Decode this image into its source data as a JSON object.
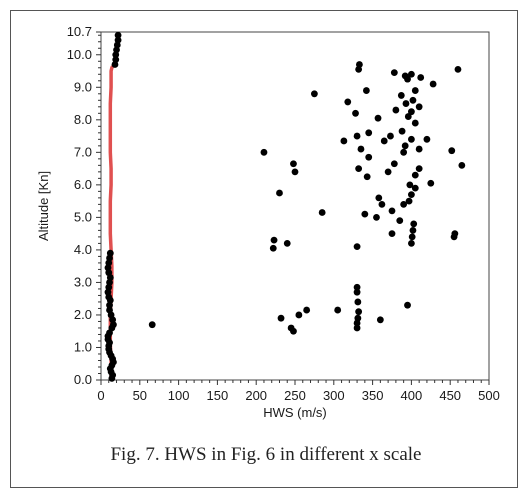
{
  "caption": "Fig. 7.  HWS in Fig. 6 in different x scale",
  "chart_data": {
    "type": "scatter",
    "xlabel": "HWS (m/s)",
    "ylabel": "Altitude [Kn]",
    "xlim": [
      0,
      500
    ],
    "ylim": [
      0,
      10.7
    ],
    "x_ticks": [
      "0",
      "50",
      "100",
      "150",
      "200",
      "250",
      "300",
      "350",
      "400",
      "450",
      "500"
    ],
    "y_ticks": [
      "0.0",
      "1.0",
      "2.0",
      "3.0",
      "4.0",
      "5.0",
      "6.0",
      "7.0",
      "8.0",
      "9.0",
      "10.0",
      "10.7"
    ],
    "y_tick_values": [
      0,
      1,
      2,
      3,
      4,
      5,
      6,
      7,
      8,
      9,
      10,
      10.7
    ],
    "grid": false,
    "colors": {
      "points": "#000000",
      "profile_line": "#e05050"
    },
    "profile_line": {
      "x": [
        13,
        13,
        12,
        12,
        12,
        13,
        14,
        14,
        13,
        12,
        12,
        12,
        13,
        13,
        12,
        12,
        12,
        12,
        13,
        13,
        13,
        14,
        15
      ],
      "y": [
        0.1,
        0.6,
        1.1,
        1.5,
        2.0,
        2.5,
        3.0,
        3.5,
        4.0,
        4.5,
        5.0,
        5.5,
        6.0,
        6.5,
        7.0,
        7.5,
        8.0,
        8.5,
        9.0,
        9.3,
        9.5,
        9.6,
        9.65
      ]
    },
    "series": [
      {
        "values": [
          [
            14,
            0.05
          ],
          [
            15,
            0.15
          ],
          [
            13,
            0.25
          ],
          [
            12,
            0.35
          ],
          [
            14,
            0.45
          ],
          [
            16,
            0.55
          ],
          [
            15,
            0.65
          ],
          [
            13,
            0.75
          ],
          [
            11,
            0.85
          ],
          [
            10,
            0.95
          ],
          [
            10,
            1.05
          ],
          [
            11,
            1.15
          ],
          [
            9,
            1.25
          ],
          [
            9,
            1.35
          ],
          [
            11,
            1.45
          ],
          [
            14,
            1.6
          ],
          [
            16,
            1.7
          ],
          [
            15,
            1.85
          ],
          [
            13,
            2.0
          ],
          [
            11,
            2.15
          ],
          [
            11,
            2.3
          ],
          [
            12,
            2.45
          ],
          [
            10,
            2.55
          ],
          [
            9,
            2.7
          ],
          [
            10,
            2.85
          ],
          [
            11,
            3.0
          ],
          [
            12,
            3.15
          ],
          [
            10,
            3.3
          ],
          [
            9,
            3.45
          ],
          [
            10,
            3.6
          ],
          [
            11,
            3.75
          ],
          [
            12,
            3.9
          ],
          [
            18,
            9.7
          ],
          [
            19,
            9.85
          ],
          [
            19,
            10.0
          ],
          [
            20,
            10.15
          ],
          [
            21,
            10.3
          ],
          [
            22,
            10.45
          ],
          [
            22,
            10.6
          ],
          [
            66,
            1.7
          ],
          [
            232,
            1.9
          ],
          [
            245,
            1.6
          ],
          [
            248,
            1.5
          ],
          [
            255,
            2.0
          ],
          [
            265,
            2.15
          ],
          [
            305,
            2.15
          ],
          [
            360,
            1.85
          ],
          [
            395,
            2.3
          ],
          [
            330,
            1.6
          ],
          [
            330,
            1.75
          ],
          [
            331,
            1.9
          ],
          [
            332,
            2.1
          ],
          [
            331,
            2.4
          ],
          [
            330,
            2.7
          ],
          [
            330,
            2.85
          ],
          [
            222,
            4.05
          ],
          [
            223,
            4.3
          ],
          [
            240,
            4.2
          ],
          [
            330,
            4.1
          ],
          [
            375,
            4.5
          ],
          [
            385,
            4.9
          ],
          [
            400,
            4.2
          ],
          [
            401,
            4.4
          ],
          [
            402,
            4.6
          ],
          [
            403,
            4.8
          ],
          [
            455,
            4.4
          ],
          [
            456,
            4.5
          ],
          [
            285,
            5.15
          ],
          [
            340,
            5.1
          ],
          [
            355,
            5.0
          ],
          [
            358,
            5.6
          ],
          [
            362,
            5.4
          ],
          [
            375,
            5.2
          ],
          [
            390,
            5.4
          ],
          [
            397,
            5.5
          ],
          [
            400,
            5.7
          ],
          [
            405,
            5.9
          ],
          [
            230,
            5.75
          ],
          [
            250,
            6.4
          ],
          [
            248,
            6.65
          ],
          [
            210,
            7.0
          ],
          [
            332,
            6.5
          ],
          [
            343,
            6.25
          ],
          [
            345,
            6.85
          ],
          [
            370,
            6.4
          ],
          [
            378,
            6.65
          ],
          [
            390,
            7.0
          ],
          [
            398,
            6.0
          ],
          [
            405,
            6.3
          ],
          [
            410,
            6.5
          ],
          [
            425,
            6.05
          ],
          [
            452,
            7.05
          ],
          [
            465,
            6.6
          ],
          [
            313,
            7.35
          ],
          [
            330,
            7.5
          ],
          [
            335,
            7.1
          ],
          [
            345,
            7.6
          ],
          [
            365,
            7.35
          ],
          [
            373,
            7.5
          ],
          [
            388,
            7.65
          ],
          [
            392,
            7.2
          ],
          [
            400,
            7.4
          ],
          [
            405,
            7.9
          ],
          [
            410,
            7.1
          ],
          [
            420,
            7.4
          ],
          [
            275,
            8.8
          ],
          [
            318,
            8.55
          ],
          [
            328,
            8.2
          ],
          [
            342,
            8.9
          ],
          [
            357,
            8.05
          ],
          [
            380,
            8.3
          ],
          [
            387,
            8.75
          ],
          [
            393,
            8.5
          ],
          [
            396,
            8.1
          ],
          [
            400,
            8.25
          ],
          [
            402,
            8.6
          ],
          [
            405,
            8.9
          ],
          [
            410,
            8.4
          ],
          [
            332,
            9.55
          ],
          [
            333,
            9.7
          ],
          [
            378,
            9.45
          ],
          [
            392,
            9.35
          ],
          [
            395,
            9.25
          ],
          [
            400,
            9.4
          ],
          [
            412,
            9.3
          ],
          [
            428,
            9.1
          ],
          [
            460,
            9.55
          ]
        ]
      }
    ]
  }
}
